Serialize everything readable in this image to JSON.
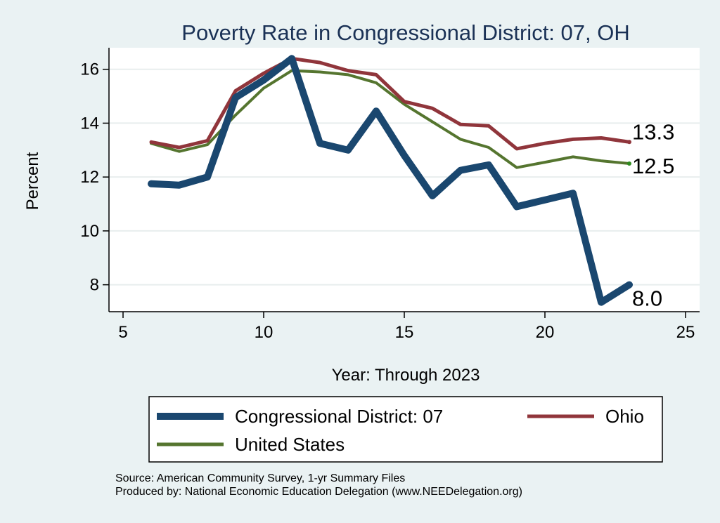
{
  "chart_data": {
    "type": "line",
    "title": "Poverty Rate in Congressional District:  07, OH",
    "xlabel": "Year: Through 2023",
    "ylabel": "Percent",
    "xlim": [
      4.5,
      25.5
    ],
    "ylim": [
      7.0,
      16.8
    ],
    "xticks": [
      5,
      10,
      15,
      20,
      25
    ],
    "yticks": [
      8,
      10,
      12,
      14,
      16
    ],
    "grid": "horizontal",
    "legend_position": "bottom",
    "x": [
      6,
      7,
      8,
      9,
      10,
      11,
      12,
      13,
      14,
      15,
      16,
      17,
      18,
      19,
      20,
      21,
      22,
      23
    ],
    "series": [
      {
        "name": "Congressional District:  07",
        "color": "#1a476f",
        "values": [
          11.75,
          11.7,
          12.0,
          14.95,
          15.6,
          16.4,
          13.25,
          13.0,
          14.45,
          12.8,
          11.3,
          12.25,
          12.45,
          10.9,
          11.15,
          11.4,
          7.35,
          8.0
        ],
        "end_label": "8.0"
      },
      {
        "name": "Ohio",
        "color": "#90353b",
        "values": [
          13.3,
          13.1,
          13.35,
          15.2,
          15.85,
          16.4,
          16.25,
          15.95,
          15.8,
          14.8,
          14.55,
          13.95,
          13.9,
          13.05,
          13.25,
          13.4,
          13.45,
          13.3
        ],
        "end_label": "13.3"
      },
      {
        "name": "United States",
        "color": "#55752f",
        "values": [
          13.25,
          12.95,
          13.2,
          14.3,
          15.3,
          15.95,
          15.9,
          15.8,
          15.5,
          14.7,
          14.05,
          13.4,
          13.1,
          12.35,
          12.55,
          12.75,
          12.6,
          12.5
        ],
        "end_label": "12.5"
      }
    ]
  },
  "legend": {
    "items": [
      "Congressional District:  07",
      "Ohio",
      "United States"
    ]
  },
  "footer": {
    "source": "Source: American Community Survey, 1-yr Summary Files",
    "produced_by": "Produced by: National Economic Education Delegation (www.NEEDelegation.org)"
  }
}
